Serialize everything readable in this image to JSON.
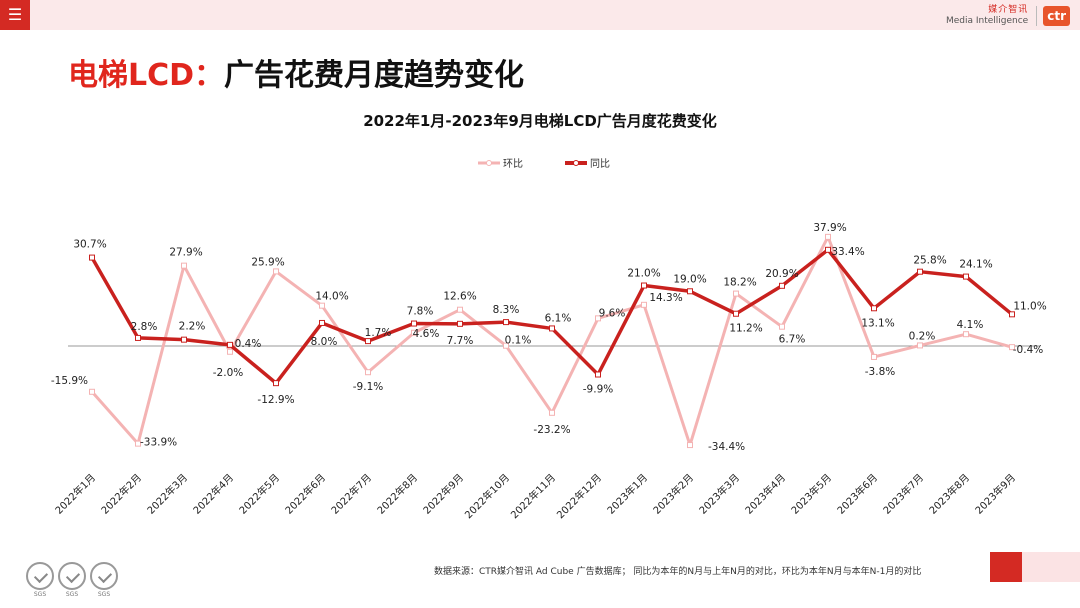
{
  "header": {
    "menu_icon": "hamburger-icon",
    "logo_cn": "媒介智讯",
    "logo_en": "Media Intelligence",
    "logo_mark": "ctr"
  },
  "page_title_prefix": "电梯LCD：",
  "page_title_main": "广告花费月度趋势变化",
  "footer": {
    "source": "数据来源：CTR媒介智讯 Ad Cube 广告数据库；  同比为本年的N月与上年N月的对比，环比为本年N月与本年N-1月的对比",
    "badges": [
      "SGS",
      "SGS",
      "SGS"
    ]
  },
  "chart_data": {
    "type": "line",
    "title": "2022年1月-2023年9月电梯LCD广告月度花费变化",
    "legend_position": "top",
    "categories": [
      "2022年1月",
      "2022年2月",
      "2022年3月",
      "2022年4月",
      "2022年5月",
      "2022年6月",
      "2022年7月",
      "2022年8月",
      "2022年9月",
      "2022年10月",
      "2022年11月",
      "2022年12月",
      "2023年1月",
      "2023年2月",
      "2023年3月",
      "2023年4月",
      "2023年5月",
      "2023年6月",
      "2023年7月",
      "2023年8月",
      "2023年9月"
    ],
    "ylim": [
      -40,
      40
    ],
    "series": [
      {
        "name": "环比",
        "color": "#f4b3b3",
        "values": [
          -15.9,
          -33.9,
          27.9,
          -2.0,
          25.9,
          14.0,
          -9.1,
          4.6,
          12.6,
          0.1,
          -23.2,
          9.6,
          14.3,
          -34.4,
          18.2,
          6.7,
          37.9,
          -3.8,
          0.2,
          4.1,
          -0.4
        ],
        "labels": [
          "-15.9%",
          "-33.9%",
          "27.9%",
          "-2.0%",
          "25.9%",
          "14.0%",
          "-9.1%",
          "4.6%",
          "12.6%",
          "0.1%",
          "-23.2%",
          "9.6%",
          "14.3%",
          "-34.4%",
          "18.2%",
          "6.7%",
          "37.9%",
          "-3.8%",
          "0.2%",
          "4.1%",
          "-0.4%"
        ]
      },
      {
        "name": "同比",
        "color": "#c9211e",
        "values": [
          30.7,
          2.8,
          2.2,
          0.4,
          -12.9,
          8.0,
          1.7,
          7.8,
          7.7,
          8.3,
          6.1,
          -9.9,
          21.0,
          19.0,
          11.2,
          20.9,
          33.4,
          13.1,
          25.8,
          24.1,
          11.0
        ],
        "labels": [
          "30.7%",
          "2.8%",
          "2.2%",
          "0.4%",
          "-12.9%",
          "8.0%",
          "1.7%",
          "7.8%",
          "7.7%",
          "8.3%",
          "6.1%",
          "-9.9%",
          "21.0%",
          "19.0%",
          "11.2%",
          "20.9%",
          "33.4%",
          "13.1%",
          "25.8%",
          "24.1%",
          "11.0%"
        ]
      }
    ]
  }
}
